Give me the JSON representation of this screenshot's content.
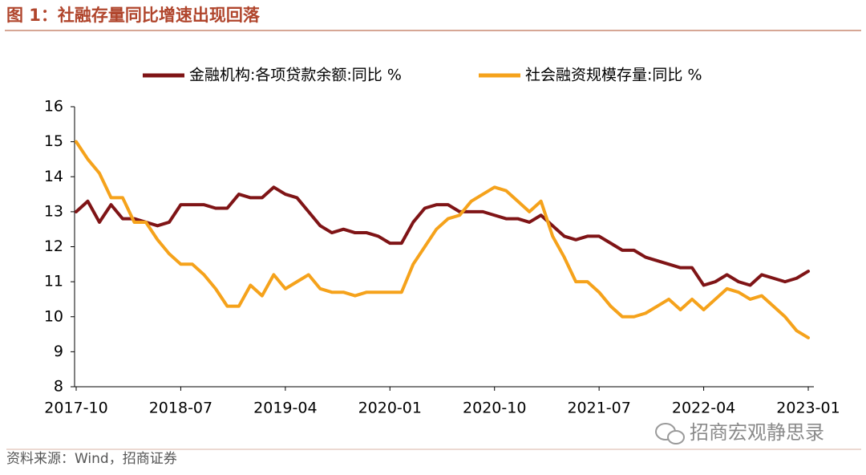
{
  "chart_data": {
    "type": "line",
    "title": "图 1：社融存量同比增速出现回落",
    "source": "资料来源：Wind，招商证券",
    "watermark": "招商宏观静思录",
    "legend": "top",
    "categories": [
      "2017-10",
      null,
      null,
      null,
      null,
      null,
      null,
      null,
      null,
      "2018-07",
      null,
      null,
      null,
      null,
      null,
      null,
      null,
      null,
      "2019-04",
      null,
      null,
      null,
      null,
      null,
      null,
      null,
      null,
      "2020-01",
      null,
      null,
      null,
      null,
      null,
      null,
      null,
      null,
      "2020-10",
      null,
      null,
      null,
      null,
      null,
      null,
      null,
      null,
      "2021-07",
      null,
      null,
      null,
      null,
      null,
      null,
      null,
      null,
      "2022-04",
      null,
      null,
      null,
      null,
      null,
      null,
      null,
      null,
      "2023-01"
    ],
    "ylim": [
      8,
      16
    ],
    "yticks": [
      8,
      9,
      10,
      11,
      12,
      13,
      14,
      15,
      16
    ],
    "series": [
      {
        "name": "金融机构:各项贷款余额:同比 %",
        "color": "#7f1416",
        "values": [
          13.0,
          13.3,
          12.7,
          13.2,
          12.8,
          12.8,
          12.7,
          12.6,
          12.7,
          13.2,
          13.2,
          13.2,
          13.1,
          13.1,
          13.5,
          13.4,
          13.4,
          13.7,
          13.5,
          13.4,
          13.0,
          12.6,
          12.4,
          12.5,
          12.4,
          12.4,
          12.3,
          12.1,
          12.1,
          12.7,
          13.1,
          13.2,
          13.2,
          13.0,
          13.0,
          13.0,
          12.9,
          12.8,
          12.8,
          12.7,
          12.9,
          12.6,
          12.3,
          12.2,
          12.3,
          12.3,
          12.1,
          11.9,
          11.9,
          11.7,
          11.6,
          11.5,
          11.4,
          11.4,
          10.9,
          11.0,
          11.2,
          11.0,
          10.9,
          11.2,
          11.1,
          11.0,
          11.1,
          11.3
        ]
      },
      {
        "name": "社会融资规模存量:同比 %",
        "color": "#f5a21b",
        "values": [
          15.0,
          14.5,
          14.1,
          13.4,
          13.4,
          12.7,
          12.7,
          12.2,
          11.8,
          11.5,
          11.5,
          11.2,
          10.8,
          10.3,
          10.3,
          10.9,
          10.6,
          11.2,
          10.8,
          11.0,
          11.2,
          10.8,
          10.7,
          10.7,
          10.6,
          10.7,
          10.7,
          10.7,
          10.7,
          11.5,
          12.0,
          12.5,
          12.8,
          12.9,
          13.3,
          13.5,
          13.7,
          13.6,
          13.3,
          13.0,
          13.3,
          12.3,
          11.7,
          11.0,
          11.0,
          10.7,
          10.3,
          10.0,
          10.0,
          10.1,
          10.3,
          10.5,
          10.2,
          10.5,
          10.2,
          10.5,
          10.8,
          10.7,
          10.5,
          10.6,
          10.3,
          10.0,
          9.6,
          9.4
        ]
      }
    ]
  }
}
